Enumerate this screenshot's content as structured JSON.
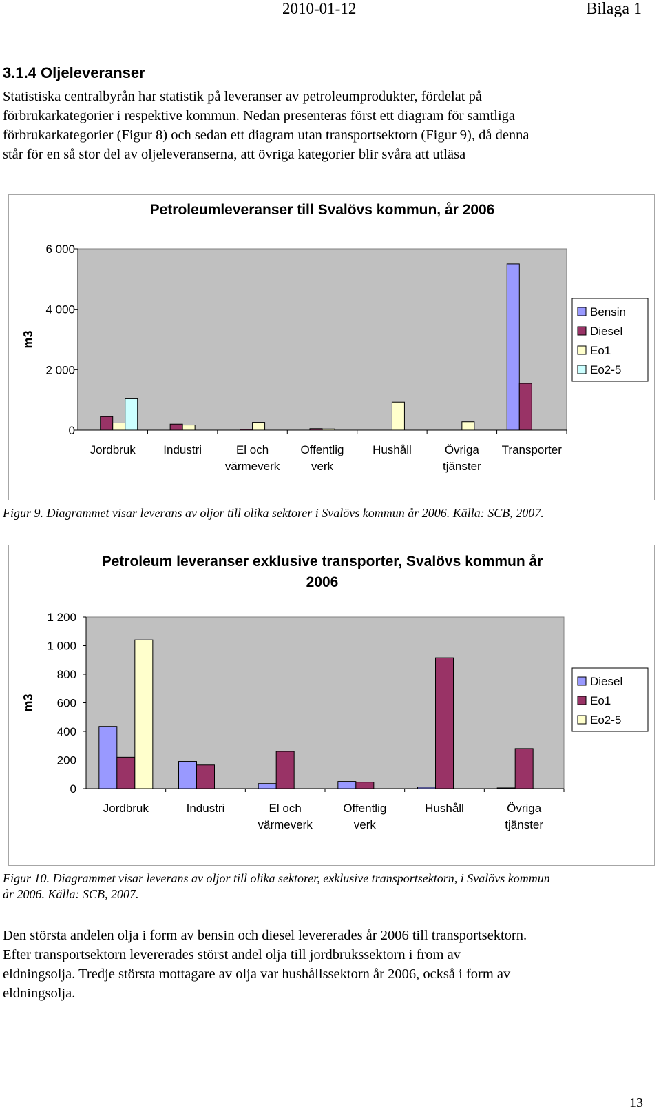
{
  "header": {
    "date": "2010-01-12",
    "appendix": "Bilaga 1"
  },
  "section": {
    "title": "3.1.4 Oljeleveranser"
  },
  "intro": {
    "lines": [
      "Statistiska centralbyrån har statistik på leveranser av petroleumprodukter, fördelat på",
      "förbrukarkategorier i respektive kommun. Nedan presenteras först ett diagram för samtliga",
      "förbrukarkategorier (Figur 8) och sedan ett diagram utan transportsektorn (Figur 9), då denna",
      "står för en så stor del av oljeleveranserna, att övriga kategorier blir svåra att utläsa"
    ]
  },
  "chart_data": [
    {
      "type": "bar",
      "title": "Petroleumleveranser till Svalövs kommun, år 2006",
      "ylabel": "m3",
      "xlabel": "",
      "ylim": [
        0,
        6000
      ],
      "yticks": [
        "0",
        "2 000",
        "4 000",
        "6 000"
      ],
      "yticks_values": [
        0,
        2000,
        4000,
        6000
      ],
      "categories": [
        [
          "Jordbruk"
        ],
        [
          "Industri"
        ],
        [
          "El och",
          "värmeverk"
        ],
        [
          "Offentlig",
          "verk"
        ],
        [
          "Hushåll"
        ],
        [
          "Övriga",
          "tjänster"
        ],
        [
          "Transporter"
        ]
      ],
      "series": [
        {
          "name": "Bensin",
          "color": "#9999ff",
          "values": [
            0,
            0,
            0,
            0,
            0,
            0,
            5500
          ]
        },
        {
          "name": "Diesel",
          "color": "#993366",
          "values": [
            450,
            200,
            30,
            50,
            0,
            0,
            1550
          ]
        },
        {
          "name": "Eo1",
          "color": "#ffffcc",
          "values": [
            240,
            170,
            260,
            40,
            930,
            280,
            0
          ]
        },
        {
          "name": "Eo2-5",
          "color": "#ccffff",
          "values": [
            1040,
            0,
            0,
            0,
            0,
            0,
            0
          ]
        }
      ],
      "grid": false,
      "legend": "right"
    },
    {
      "type": "bar",
      "title": "Petroleum leveranser exklusive transporter, Svalövs kommun år 2006",
      "ylabel": "m3",
      "xlabel": "",
      "ylim": [
        0,
        1200
      ],
      "yticks": [
        "0",
        "200",
        "400",
        "600",
        "800",
        "1 000",
        "1 200"
      ],
      "yticks_values": [
        0,
        200,
        400,
        600,
        800,
        1000,
        1200
      ],
      "categories": [
        [
          "Jordbruk"
        ],
        [
          "Industri"
        ],
        [
          "El och",
          "värmeverk"
        ],
        [
          "Offentlig",
          "verk"
        ],
        [
          "Hushåll"
        ],
        [
          "Övriga",
          "tjänster"
        ]
      ],
      "series": [
        {
          "name": "Diesel",
          "color": "#9999ff",
          "values": [
            435,
            190,
            35,
            50,
            10,
            5
          ]
        },
        {
          "name": "Eo1",
          "color": "#993366",
          "values": [
            220,
            165,
            260,
            45,
            915,
            280
          ]
        },
        {
          "name": "Eo2-5",
          "color": "#ffffcc",
          "values": [
            1040,
            0,
            0,
            0,
            0,
            0
          ]
        }
      ],
      "grid": false,
      "legend": "right"
    }
  ],
  "captions": {
    "fig9": "Figur 9. Diagrammet visar leverans av oljor till olika sektorer i Svalövs kommun år 2006. Källa: SCB, 2007.",
    "fig10_line1": "Figur 10. Diagrammet visar leverans av oljor till olika sektorer, exklusive transportsektorn, i Svalövs kommun",
    "fig10_line2": "år 2006. Källa: SCB, 2007."
  },
  "conclusion": {
    "lines": [
      "Den största andelen olja i form av bensin och diesel levererades år 2006 till transportsektorn.",
      "Efter transportsektorn levererades störst andel olja till jordbrukssektorn i from av",
      "eldningsolja. Tredje största mottagare av olja var hushållssektorn år 2006, också i form av",
      "eldningsolja."
    ]
  },
  "footer": {
    "page_number": "13"
  }
}
